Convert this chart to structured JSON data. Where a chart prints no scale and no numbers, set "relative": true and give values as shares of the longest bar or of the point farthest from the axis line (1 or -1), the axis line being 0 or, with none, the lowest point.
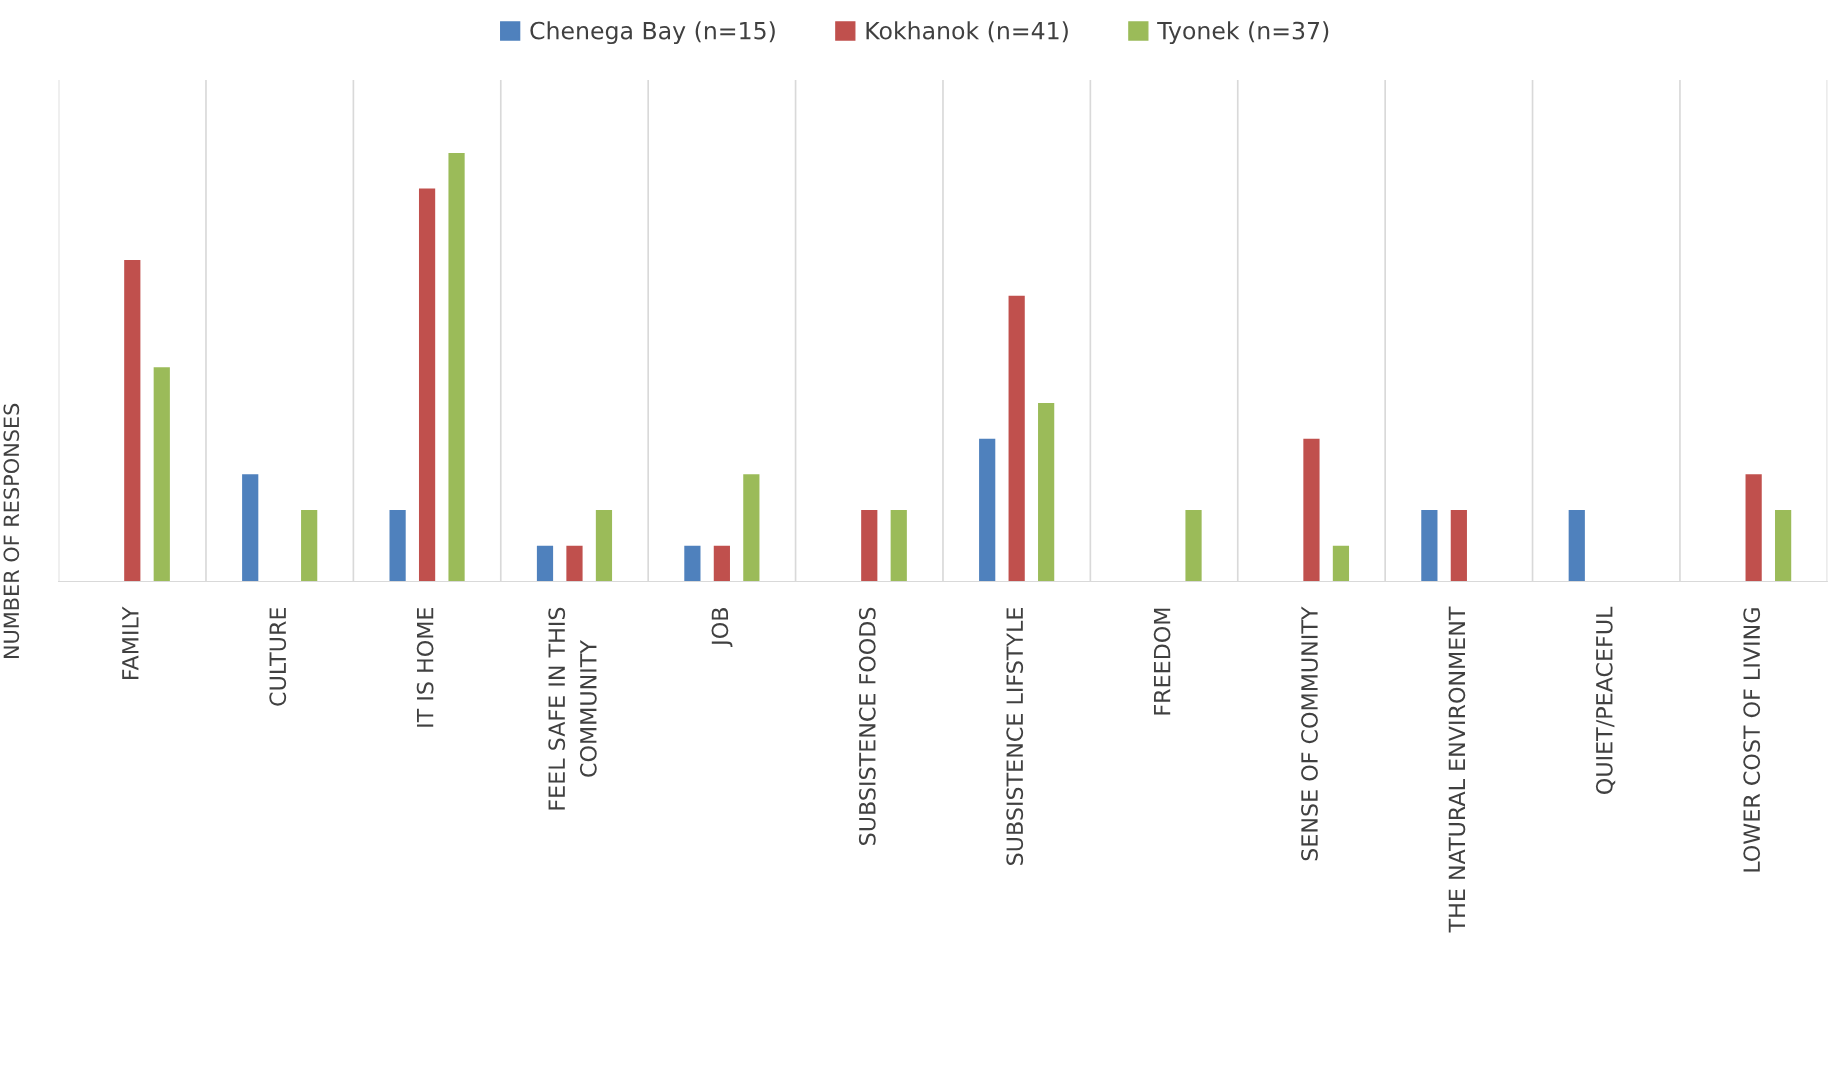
{
  "chart_data": {
    "type": "bar",
    "relative": true,
    "ylabel": "NUMBER OF RESPONSES",
    "legend": "top",
    "grid": "x",
    "categories": [
      "FAMILY",
      "CULTURE",
      "IT IS HOME",
      "FEEL SAFE IN THIS\nCOMMUNITY",
      "JOB",
      "SUBSISTENCE FOODS",
      "SUBSISTENCE LIFSTYLE",
      "FREEDOM",
      "SENSE OF COMMUNITY",
      "THE NATURAL ENVIRONMENT",
      "QUIET/PEACEFUL",
      "LOWER COST OF LIVING"
    ],
    "series": [
      {
        "name": "Chenega Bay (n=15)",
        "color": "#4f81bd",
        "values": [
          0,
          0.25,
          0.1667,
          0.0833,
          0.0833,
          0,
          0.3333,
          0,
          0,
          0.1667,
          0.1667,
          0
        ]
      },
      {
        "name": "Kokhanok (n=41)",
        "color": "#c0504d",
        "values": [
          0.75,
          0,
          0.9167,
          0.0833,
          0.0833,
          0.1667,
          0.6667,
          0,
          0.3333,
          0.1667,
          0,
          0.25
        ]
      },
      {
        "name": "Tyonek (n=37)",
        "color": "#9bbb59",
        "values": [
          0.5,
          0.1667,
          1,
          0.1667,
          0.25,
          0.1667,
          0.4167,
          0.1667,
          0.0833,
          0,
          0,
          0.1667
        ]
      }
    ]
  }
}
